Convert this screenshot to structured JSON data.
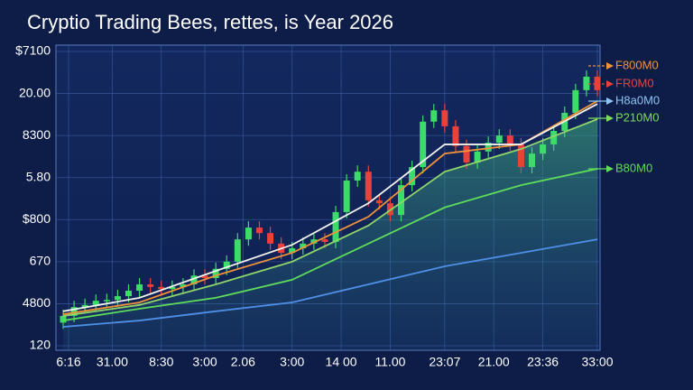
{
  "chart_data": {
    "type": "candlestick",
    "title": "Cryptio Trading Bees, rettes, is Year 2026",
    "xlim": [
      0,
      49
    ],
    "xticks": [
      {
        "value": 0.5,
        "label": "6:16"
      },
      {
        "value": 4.5,
        "label": "31.00"
      },
      {
        "value": 9,
        "label": "8:30"
      },
      {
        "value": 13,
        "label": "3:00"
      },
      {
        "value": 16.5,
        "label": "2.06"
      },
      {
        "value": 21,
        "label": "3:00"
      },
      {
        "value": 25.5,
        "label": "14 00"
      },
      {
        "value": 30,
        "label": "11.00"
      },
      {
        "value": 35,
        "label": "23:07"
      },
      {
        "value": 39.5,
        "label": "21.00"
      },
      {
        "value": 44,
        "label": "23:36"
      },
      {
        "value": 49,
        "label": "33:00"
      }
    ],
    "ylim": [
      0,
      7
    ],
    "yticks": [
      {
        "value": 0,
        "label": "120"
      },
      {
        "value": 1,
        "label": "4800"
      },
      {
        "value": 2,
        "label": "670"
      },
      {
        "value": 3,
        "label": "$800"
      },
      {
        "value": 4,
        "label": "5.80"
      },
      {
        "value": 5,
        "label": "8300"
      },
      {
        "value": 6,
        "label": "20.00"
      },
      {
        "value": 7,
        "label": "$7100"
      }
    ],
    "grid": true,
    "up_color": "#3ddc6a",
    "down_color": "#e8423b",
    "candles": {
      "open": [
        0.55,
        0.71,
        0.92,
        0.97,
        1.07,
        1.09,
        1.18,
        1.31,
        1.46,
        1.4,
        1.35,
        1.4,
        1.46,
        1.67,
        1.61,
        1.83,
        2.0,
        2.53,
        2.81,
        2.68,
        2.43,
        2.21,
        2.32,
        2.43,
        2.53,
        2.47,
        3.18,
        3.93,
        4.14,
        3.46,
        3.39,
        3.11,
        3.82,
        4.25,
        5.33,
        5.6,
        5.22,
        4.75,
        4.36,
        4.62,
        4.83,
        5.0,
        4.79,
        4.25,
        4.57,
        4.79,
        5.11,
        5.54,
        6.08,
        6.4
      ],
      "high": [
        0.86,
        1.07,
        1.12,
        1.22,
        1.24,
        1.33,
        1.46,
        1.61,
        1.61,
        1.55,
        1.55,
        1.61,
        1.82,
        1.82,
        1.98,
        2.15,
        2.68,
        2.96,
        2.96,
        2.83,
        2.58,
        2.47,
        2.58,
        2.68,
        2.68,
        3.33,
        4.08,
        4.29,
        4.29,
        3.61,
        3.54,
        3.97,
        4.4,
        5.48,
        5.75,
        5.75,
        5.37,
        4.9,
        4.77,
        4.98,
        5.15,
        5.15,
        4.94,
        4.72,
        4.94,
        5.26,
        5.69,
        6.23,
        6.55,
        6.55
      ],
      "low": [
        0.4,
        0.56,
        0.77,
        0.82,
        0.92,
        0.94,
        1.03,
        1.16,
        1.25,
        1.2,
        1.2,
        1.25,
        1.31,
        1.46,
        1.46,
        1.68,
        1.85,
        2.38,
        2.53,
        2.28,
        2.06,
        2.06,
        2.17,
        2.28,
        2.32,
        2.32,
        3.03,
        3.78,
        3.31,
        3.24,
        2.96,
        2.96,
        3.67,
        4.1,
        5.18,
        5.07,
        4.6,
        4.21,
        4.21,
        4.47,
        4.68,
        4.64,
        4.1,
        4.1,
        4.42,
        4.64,
        4.96,
        5.39,
        5.93,
        5.93
      ],
      "close": [
        0.71,
        0.92,
        0.97,
        1.07,
        1.09,
        1.18,
        1.31,
        1.46,
        1.4,
        1.35,
        1.4,
        1.46,
        1.67,
        1.61,
        1.83,
        2.0,
        2.53,
        2.81,
        2.68,
        2.43,
        2.21,
        2.32,
        2.43,
        2.53,
        2.47,
        3.18,
        3.93,
        4.14,
        3.46,
        3.39,
        3.11,
        3.82,
        4.25,
        5.33,
        5.6,
        5.22,
        4.75,
        4.36,
        4.62,
        4.83,
        5.0,
        4.79,
        4.25,
        4.57,
        4.79,
        5.11,
        5.54,
        6.08,
        6.4,
        6.08
      ]
    },
    "lines": [
      {
        "color": "#4f8fe6",
        "x": [
          0,
          7,
          14,
          21,
          28,
          35,
          42,
          49
        ],
        "values": [
          0.45,
          0.6,
          0.82,
          1.03,
          1.46,
          1.89,
          2.21,
          2.53
        ]
      },
      {
        "color": "#5fdc5a",
        "x": [
          0,
          7,
          14,
          21,
          28,
          35,
          42,
          49
        ],
        "values": [
          0.6,
          0.88,
          1.14,
          1.57,
          2.43,
          3.29,
          3.82,
          4.21
        ]
      },
      {
        "color": "#8fd66a",
        "x": [
          0,
          7,
          14,
          21,
          28,
          35,
          42,
          49
        ],
        "values": [
          0.71,
          0.97,
          1.46,
          2.0,
          2.86,
          4.14,
          4.68,
          5.39
        ],
        "area": true
      },
      {
        "color": "#f0923a",
        "x": [
          0,
          7,
          14,
          21,
          28,
          35,
          42,
          49
        ],
        "values": [
          0.75,
          1.03,
          1.67,
          2.21,
          3.07,
          4.57,
          4.79,
          5.82
        ]
      },
      {
        "color": "#f2f2ee",
        "x": [
          0,
          7,
          14,
          21,
          28,
          35,
          42,
          49
        ],
        "values": [
          0.82,
          1.14,
          1.78,
          2.4,
          3.39,
          4.79,
          4.79,
          5.75
        ]
      }
    ],
    "annotations": [
      {
        "text": "F800M0",
        "color": "#f0923a"
      },
      {
        "text": "FR0M0",
        "color": "#e8423b"
      },
      {
        "text": "H8a0M0",
        "color": "#8fc4f0"
      },
      {
        "text": "P210M0",
        "color": "#7ddc5a"
      },
      {
        "text": "B80M0",
        "color": "#5fdc5a"
      }
    ]
  }
}
